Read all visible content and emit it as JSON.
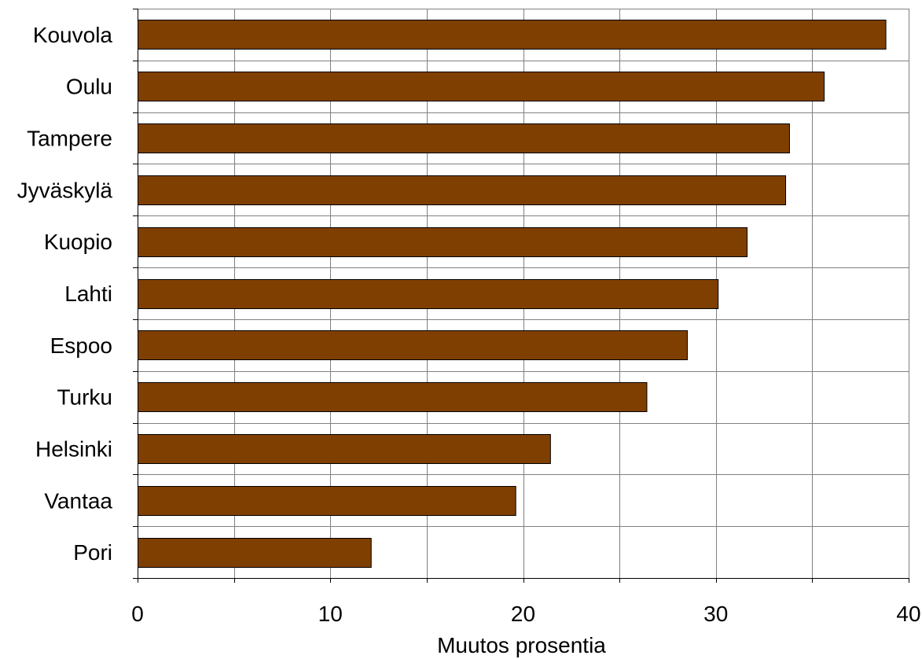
{
  "chart_data": {
    "type": "bar",
    "orientation": "horizontal",
    "categories": [
      "Kouvola",
      "Oulu",
      "Tampere",
      "Jyväskylä",
      "Kuopio",
      "Lahti",
      "Espoo",
      "Turku",
      "Helsinki",
      "Vantaa",
      "Pori"
    ],
    "values": [
      38.8,
      35.6,
      33.8,
      33.6,
      31.6,
      30.1,
      28.5,
      26.4,
      21.4,
      19.6,
      12.1
    ],
    "xlabel": "Muutos prosentia",
    "ylabel": "",
    "xlim": [
      0,
      40
    ],
    "x_ticks": [
      0,
      10,
      20,
      30,
      40
    ],
    "x_tick_labels": [
      "0",
      "10",
      "20",
      "30",
      "40"
    ],
    "grid": true,
    "bar_color": "#7f3f00",
    "grid_color": "#808080"
  }
}
